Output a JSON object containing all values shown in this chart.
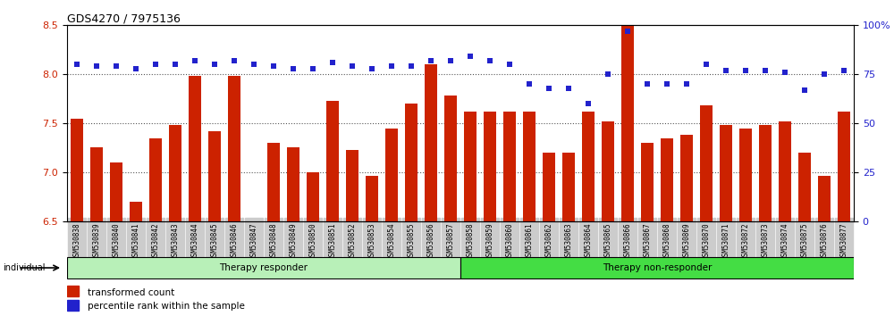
{
  "title": "GDS4270 / 7975136",
  "samples": [
    "GSM530838",
    "GSM530839",
    "GSM530840",
    "GSM530841",
    "GSM530842",
    "GSM530843",
    "GSM530844",
    "GSM530845",
    "GSM530846",
    "GSM530847",
    "GSM530848",
    "GSM530849",
    "GSM530850",
    "GSM530851",
    "GSM530852",
    "GSM530853",
    "GSM530854",
    "GSM530855",
    "GSM530856",
    "GSM530857",
    "GSM530858",
    "GSM530859",
    "GSM530860",
    "GSM530861",
    "GSM530862",
    "GSM530863",
    "GSM530864",
    "GSM530865",
    "GSM530866",
    "GSM530867",
    "GSM530868",
    "GSM530869",
    "GSM530870",
    "GSM530871",
    "GSM530872",
    "GSM530873",
    "GSM530874",
    "GSM530875",
    "GSM530876",
    "GSM530877"
  ],
  "bar_values": [
    7.55,
    7.25,
    7.1,
    6.7,
    7.35,
    7.48,
    7.98,
    7.42,
    7.98,
    6.5,
    7.3,
    7.25,
    7.0,
    7.73,
    7.23,
    6.96,
    7.45,
    7.7,
    8.1,
    7.78,
    7.62,
    7.62,
    7.62,
    7.62,
    7.2,
    7.2,
    7.62,
    7.52,
    8.5,
    7.3,
    7.35,
    7.38,
    7.68,
    7.48,
    7.45,
    7.48,
    7.52,
    7.2,
    6.96,
    7.62
  ],
  "percentile_values": [
    80,
    79,
    79,
    78,
    80,
    80,
    82,
    80,
    82,
    80,
    79,
    78,
    78,
    81,
    79,
    78,
    79,
    79,
    82,
    82,
    84,
    82,
    80,
    70,
    68,
    68,
    60,
    75,
    97,
    70,
    70,
    70,
    80,
    77,
    77,
    77,
    76,
    67,
    75,
    77
  ],
  "responder_count": 20,
  "non_responder_count": 20,
  "bar_color": "#cc2200",
  "scatter_color": "#2222cc",
  "left_ylim": [
    6.5,
    8.5
  ],
  "right_ylim": [
    0,
    100
  ],
  "left_yticks": [
    6.5,
    7.0,
    7.5,
    8.0,
    8.5
  ],
  "right_yticks": [
    0,
    25,
    50,
    75,
    100
  ],
  "responder_color": "#b8f0b8",
  "non_responder_color": "#44dd44",
  "tick_bg_color": "#cccccc",
  "grid_color": "#555555",
  "right_ytick_labels": [
    "0",
    "25",
    "50",
    "75",
    "100%"
  ]
}
